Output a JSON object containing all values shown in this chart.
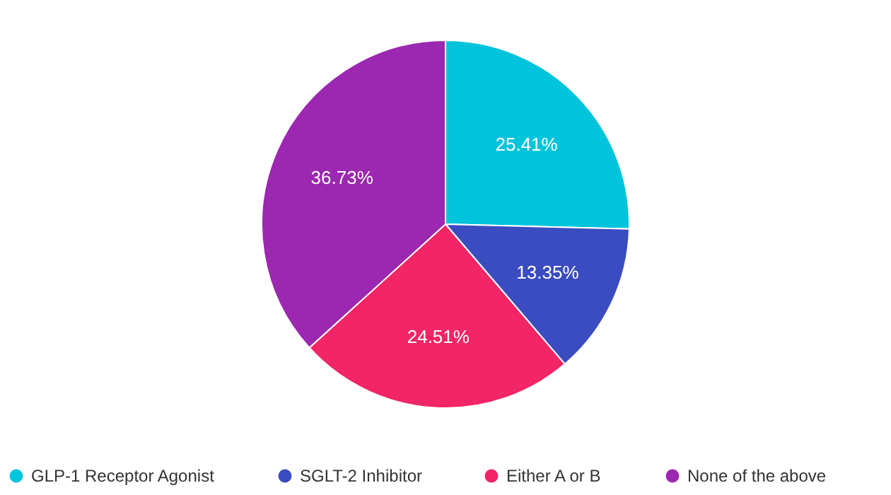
{
  "chart_data": {
    "type": "pie",
    "categories": [
      "GLP-1 Receptor Agonist",
      "SGLT-2 Inhibitor",
      "Either A or B",
      "None of the above"
    ],
    "values": [
      25.41,
      13.35,
      24.51,
      36.73
    ],
    "colors": [
      "#00c4dc",
      "#3b4cc0",
      "#f22566",
      "#9c27b0"
    ],
    "value_labels": [
      "25.41%",
      "13.35%",
      "24.51%",
      "36.73%"
    ],
    "legend": "bottom"
  }
}
